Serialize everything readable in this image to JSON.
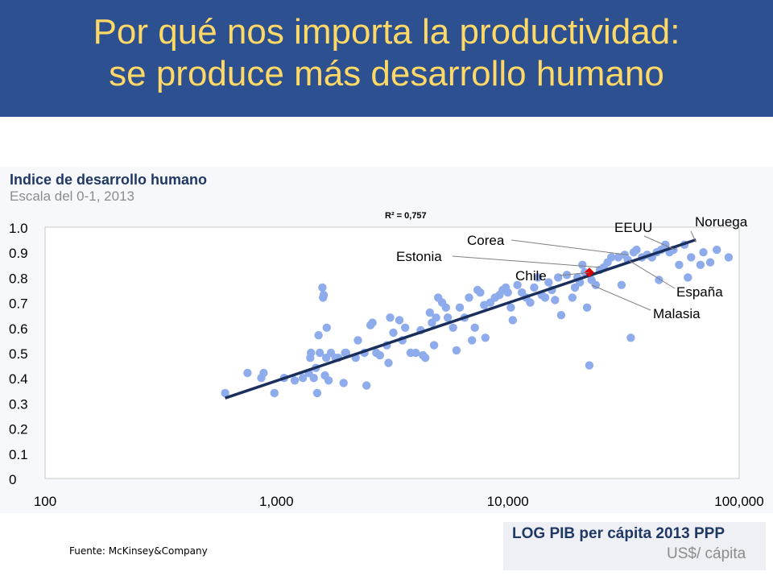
{
  "slide": {
    "title_line1": "Por qué nos importa la productividad:",
    "title_line2": "se produce más desarrollo humano",
    "source": "Fuente: McKinsey&Company",
    "colors": {
      "header_bg": "#2d5091",
      "title": "#ffd966",
      "points": "#8eabec",
      "trend": "#1b2f5c",
      "highlight": "#e00000"
    }
  },
  "chart_data": {
    "type": "scatter",
    "title": "Indice de desarrollo humano",
    "subtitle": "Escala del 0-1, 2013",
    "xlabel": "LOG PIB per cápita 2013 PPP",
    "xunit": "US$/ cápita",
    "xscale": "log",
    "xlim": [
      100,
      100000
    ],
    "ylim": [
      0,
      1.0
    ],
    "xticks": [
      "100",
      "1,000",
      "10,000",
      "100,000"
    ],
    "yticks": [
      "0",
      "0.1",
      "0.2",
      "0.3",
      "0.4",
      "0.5",
      "0.6",
      "0.7",
      "0.8",
      "0.9",
      "1.0"
    ],
    "r2_label": "R² = 0,757",
    "trendline": [
      [
        600,
        0.32
      ],
      [
        65000,
        0.95
      ]
    ],
    "highlight": {
      "name": "Chile",
      "x": 22500,
      "y": 0.82
    },
    "labels": [
      {
        "text": "Noruega",
        "x": 65000,
        "y": 0.94
      },
      {
        "text": "EEUU",
        "x": 53000,
        "y": 0.91
      },
      {
        "text": "Corea",
        "x": 33000,
        "y": 0.89
      },
      {
        "text": "Estonia",
        "x": 25000,
        "y": 0.84
      },
      {
        "text": "Chile",
        "x": 22500,
        "y": 0.82
      },
      {
        "text": "España",
        "x": 33000,
        "y": 0.87
      },
      {
        "text": "Malasia",
        "x": 23000,
        "y": 0.77
      }
    ],
    "points": [
      [
        600,
        0.34
      ],
      [
        750,
        0.42
      ],
      [
        860,
        0.4
      ],
      [
        880,
        0.42
      ],
      [
        980,
        0.34
      ],
      [
        1080,
        0.4
      ],
      [
        1200,
        0.39
      ],
      [
        1300,
        0.4
      ],
      [
        1380,
        0.42
      ],
      [
        1400,
        0.48
      ],
      [
        1410,
        0.5
      ],
      [
        1450,
        0.4
      ],
      [
        1480,
        0.44
      ],
      [
        1500,
        0.34
      ],
      [
        1520,
        0.57
      ],
      [
        1540,
        0.5
      ],
      [
        1580,
        0.76
      ],
      [
        1590,
        0.72
      ],
      [
        1600,
        0.73
      ],
      [
        1620,
        0.41
      ],
      [
        1640,
        0.48
      ],
      [
        1650,
        0.6
      ],
      [
        1680,
        0.39
      ],
      [
        1720,
        0.5
      ],
      [
        1800,
        0.48
      ],
      [
        1850,
        0.48
      ],
      [
        1950,
        0.38
      ],
      [
        1980,
        0.5
      ],
      [
        2000,
        0.5
      ],
      [
        2200,
        0.48
      ],
      [
        2250,
        0.55
      ],
      [
        2400,
        0.5
      ],
      [
        2450,
        0.37
      ],
      [
        2550,
        0.61
      ],
      [
        2600,
        0.62
      ],
      [
        2700,
        0.5
      ],
      [
        2800,
        0.49
      ],
      [
        3000,
        0.53
      ],
      [
        3050,
        0.46
      ],
      [
        3100,
        0.64
      ],
      [
        3200,
        0.58
      ],
      [
        3400,
        0.63
      ],
      [
        3500,
        0.55
      ],
      [
        3600,
        0.6
      ],
      [
        3800,
        0.5
      ],
      [
        4000,
        0.5
      ],
      [
        4200,
        0.59
      ],
      [
        4300,
        0.49
      ],
      [
        4400,
        0.48
      ],
      [
        4600,
        0.66
      ],
      [
        4700,
        0.62
      ],
      [
        4800,
        0.53
      ],
      [
        4900,
        0.64
      ],
      [
        5000,
        0.72
      ],
      [
        5200,
        0.7
      ],
      [
        5400,
        0.68
      ],
      [
        5500,
        0.64
      ],
      [
        5800,
        0.6
      ],
      [
        6000,
        0.51
      ],
      [
        6200,
        0.68
      ],
      [
        6500,
        0.64
      ],
      [
        6800,
        0.72
      ],
      [
        7000,
        0.55
      ],
      [
        7200,
        0.6
      ],
      [
        7400,
        0.75
      ],
      [
        7600,
        0.74
      ],
      [
        7900,
        0.69
      ],
      [
        8000,
        0.56
      ],
      [
        8400,
        0.7
      ],
      [
        8800,
        0.72
      ],
      [
        9200,
        0.73
      ],
      [
        9500,
        0.75
      ],
      [
        9800,
        0.76
      ],
      [
        10000,
        0.74
      ],
      [
        10300,
        0.68
      ],
      [
        10500,
        0.63
      ],
      [
        11000,
        0.77
      ],
      [
        11500,
        0.74
      ],
      [
        12000,
        0.72
      ],
      [
        12500,
        0.7
      ],
      [
        13000,
        0.76
      ],
      [
        13500,
        0.8
      ],
      [
        14000,
        0.73
      ],
      [
        14500,
        0.72
      ],
      [
        15000,
        0.78
      ],
      [
        15500,
        0.75
      ],
      [
        16000,
        0.71
      ],
      [
        16500,
        0.8
      ],
      [
        17000,
        0.65
      ],
      [
        18000,
        0.81
      ],
      [
        19000,
        0.72
      ],
      [
        19500,
        0.76
      ],
      [
        20000,
        0.8
      ],
      [
        20500,
        0.78
      ],
      [
        21000,
        0.85
      ],
      [
        21500,
        0.82
      ],
      [
        22000,
        0.68
      ],
      [
        22500,
        0.45
      ],
      [
        23000,
        0.79
      ],
      [
        24000,
        0.77
      ],
      [
        25000,
        0.83
      ],
      [
        26000,
        0.84
      ],
      [
        27000,
        0.86
      ],
      [
        28000,
        0.88
      ],
      [
        30000,
        0.88
      ],
      [
        31000,
        0.77
      ],
      [
        32000,
        0.89
      ],
      [
        33000,
        0.87
      ],
      [
        34000,
        0.56
      ],
      [
        35000,
        0.9
      ],
      [
        36000,
        0.91
      ],
      [
        38000,
        0.88
      ],
      [
        40000,
        0.89
      ],
      [
        42000,
        0.88
      ],
      [
        44000,
        0.9
      ],
      [
        45000,
        0.79
      ],
      [
        46000,
        0.91
      ],
      [
        48000,
        0.93
      ],
      [
        50000,
        0.9
      ],
      [
        52000,
        0.91
      ],
      [
        55000,
        0.85
      ],
      [
        58000,
        0.93
      ],
      [
        60000,
        0.8
      ],
      [
        62000,
        0.88
      ],
      [
        68000,
        0.85
      ],
      [
        70000,
        0.9
      ],
      [
        75000,
        0.86
      ],
      [
        80000,
        0.91
      ],
      [
        90000,
        0.88
      ]
    ]
  }
}
